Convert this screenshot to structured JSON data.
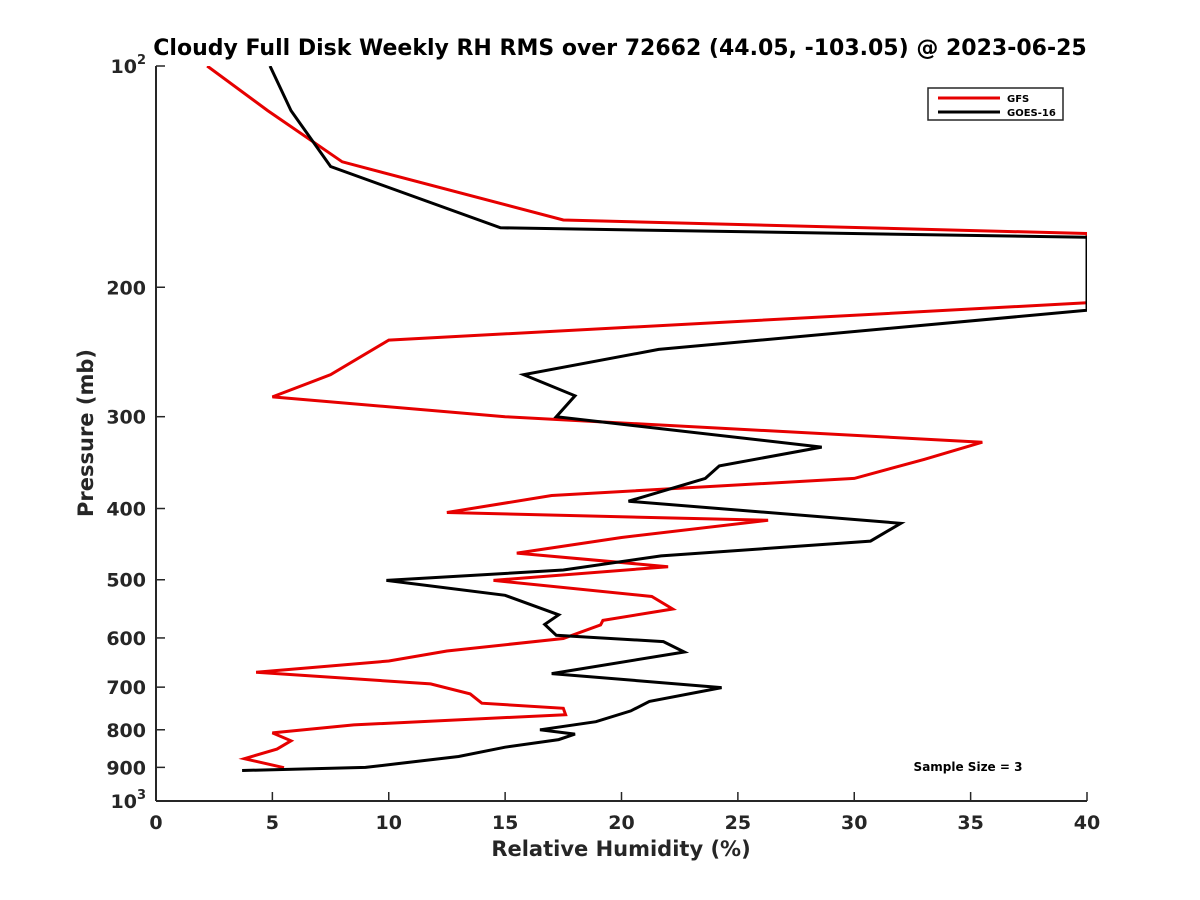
{
  "chart_data": {
    "type": "line",
    "title": "Cloudy Full Disk Weekly RH RMS over 72662 (44.05, -103.05) @ 2023-06-25",
    "xlabel": "Relative Humidity (%)",
    "ylabel": "Pressure (mb)",
    "xlim": [
      0,
      40
    ],
    "ylim": [
      100,
      1000
    ],
    "y_scale": "log",
    "y_reversed": true,
    "x_ticks": [
      "0",
      "5",
      "10",
      "15",
      "20",
      "25",
      "30",
      "35",
      "40"
    ],
    "y_ticks": [
      {
        "value": 100,
        "base": "10",
        "exp": "2"
      },
      {
        "value": 200,
        "label": "200"
      },
      {
        "value": 300,
        "label": "300"
      },
      {
        "value": 400,
        "label": "400"
      },
      {
        "value": 500,
        "label": "500"
      },
      {
        "value": 600,
        "label": "600"
      },
      {
        "value": 700,
        "label": "700"
      },
      {
        "value": 800,
        "label": "800"
      },
      {
        "value": 900,
        "label": "900"
      },
      {
        "value": 1000,
        "base": "10",
        "exp": "3"
      }
    ],
    "grid": false,
    "legend_position": "top-right",
    "annotation": "Sample Size = 3",
    "series": [
      {
        "name": "GFS",
        "color": "#e60000",
        "points": [
          [
            2.2,
            100
          ],
          [
            4.8,
            115
          ],
          [
            8.0,
            135
          ],
          [
            17.5,
            162
          ],
          [
            40.0,
            169
          ],
          [
            40.0,
            210
          ],
          [
            10.0,
            236
          ],
          [
            7.5,
            263
          ],
          [
            5.0,
            282
          ],
          [
            15.0,
            300
          ],
          [
            35.5,
            325
          ],
          [
            33.0,
            343
          ],
          [
            30.0,
            364
          ],
          [
            17.0,
            384
          ],
          [
            12.5,
            405
          ],
          [
            26.3,
            415
          ],
          [
            20.0,
            438
          ],
          [
            15.5,
            460
          ],
          [
            22.0,
            480
          ],
          [
            14.5,
            501
          ],
          [
            21.3,
            527
          ],
          [
            22.2,
            548
          ],
          [
            19.2,
            568
          ],
          [
            19.1,
            576
          ],
          [
            17.5,
            601
          ],
          [
            12.5,
            625
          ],
          [
            10.0,
            645
          ],
          [
            4.3,
            668
          ],
          [
            11.8,
            693
          ],
          [
            13.5,
            715
          ],
          [
            14.0,
            736
          ],
          [
            17.5,
            748
          ],
          [
            17.6,
            763
          ],
          [
            8.5,
            788
          ],
          [
            5.0,
            808
          ],
          [
            5.8,
            828
          ],
          [
            5.2,
            850
          ],
          [
            3.8,
            876
          ],
          [
            5.5,
            901
          ]
        ]
      },
      {
        "name": "GOES-16",
        "color": "#000000",
        "points": [
          [
            4.9,
            100
          ],
          [
            5.8,
            115
          ],
          [
            7.5,
            137
          ],
          [
            14.8,
            166
          ],
          [
            40.0,
            171
          ],
          [
            40.0,
            215
          ],
          [
            21.6,
            243
          ],
          [
            15.8,
            263
          ],
          [
            18.0,
            281
          ],
          [
            17.2,
            300
          ],
          [
            28.6,
            330
          ],
          [
            24.2,
            350
          ],
          [
            23.6,
            364
          ],
          [
            20.3,
            391
          ],
          [
            32.0,
            419
          ],
          [
            30.7,
            443
          ],
          [
            21.7,
            464
          ],
          [
            17.5,
            485
          ],
          [
            9.9,
            501
          ],
          [
            15.0,
            525
          ],
          [
            17.3,
            558
          ],
          [
            16.7,
            575
          ],
          [
            17.2,
            595
          ],
          [
            21.8,
            607
          ],
          [
            22.7,
            627
          ],
          [
            17.0,
            671
          ],
          [
            24.3,
            701
          ],
          [
            21.2,
            732
          ],
          [
            20.4,
            754
          ],
          [
            18.9,
            780
          ],
          [
            16.5,
            800
          ],
          [
            18.0,
            811
          ],
          [
            17.3,
            825
          ],
          [
            15.0,
            845
          ],
          [
            13.0,
            870
          ],
          [
            9.0,
            900
          ],
          [
            3.7,
            909
          ]
        ]
      }
    ]
  }
}
